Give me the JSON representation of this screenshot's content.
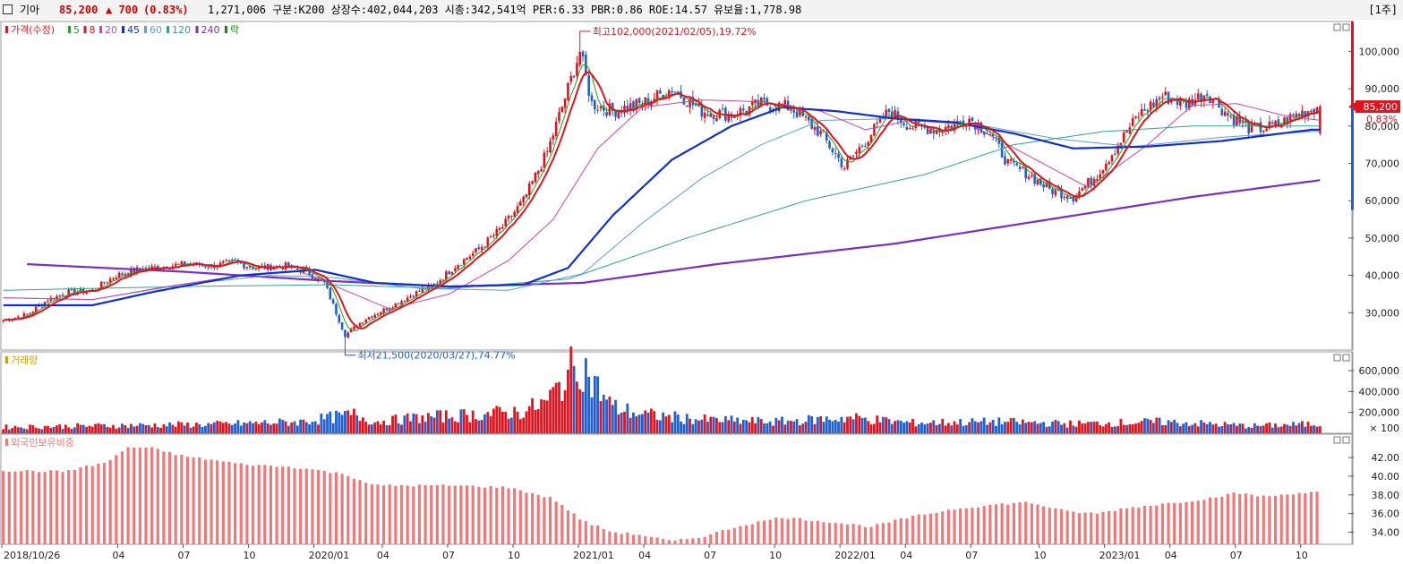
{
  "header": {
    "name": "기아",
    "price": "85,200",
    "change": "▲ 700",
    "change_pct": "(0.83%)",
    "info": "1,271,006  구분:K200 상장수:402,044,203 시총:342,541억 PER:6.33 PBR:0.86 ROE:14.57 유보율:1,778.98",
    "period": "[1주]"
  },
  "colors": {
    "up": "#e0141e",
    "down": "#1f5fd1",
    "ma5": "#22a022",
    "ma8": "#e0141e",
    "ma20": "#cc44aa",
    "ma45": "#1030c8",
    "ma60": "#5c9ed6",
    "ma120": "#2ca58d",
    "ma240": "#7a2fc0",
    "foreign": "#f07878"
  },
  "chart_data": [
    {
      "type": "line",
      "panel": "price",
      "legend": [
        {
          "label": "가격(수정)",
          "color": "#e0141e"
        },
        {
          "label": "5",
          "color": "#22a022"
        },
        {
          "label": "8",
          "color": "#e0141e"
        },
        {
          "label": "20",
          "color": "#cc44aa"
        },
        {
          "label": "45",
          "color": "#1030c8"
        },
        {
          "label": "60",
          "color": "#5c9ed6"
        },
        {
          "label": "120",
          "color": "#2ca58d"
        },
        {
          "label": "240",
          "color": "#7a2fc0"
        },
        {
          "label": "락",
          "color": "#118811"
        }
      ],
      "x_ticks": [
        "2018/10/26",
        "04",
        "07",
        "10",
        "2020/01",
        "04",
        "07",
        "10",
        "2021/01",
        "04",
        "07",
        "10",
        "2022/01",
        "04",
        "07",
        "10",
        "2023/01",
        "04",
        "07",
        "10"
      ],
      "y_ticks": [
        "30,000",
        "40,000",
        "50,000",
        "60,000",
        "70,000",
        "80,000",
        "90,000",
        "100,000"
      ],
      "ylim": [
        20000,
        108000
      ],
      "keypoints_week_close": [
        [
          0,
          28000
        ],
        [
          8,
          29500
        ],
        [
          15,
          33500
        ],
        [
          22,
          35500
        ],
        [
          30,
          36000
        ],
        [
          38,
          40000
        ],
        [
          45,
          41500
        ],
        [
          55,
          42500
        ],
        [
          62,
          43000
        ],
        [
          70,
          42500
        ],
        [
          78,
          43500
        ],
        [
          85,
          42000
        ],
        [
          95,
          42500
        ],
        [
          102,
          41000
        ],
        [
          108,
          38000
        ],
        [
          112,
          30000
        ],
        [
          115,
          24000
        ],
        [
          122,
          28500
        ],
        [
          130,
          31500
        ],
        [
          138,
          35000
        ],
        [
          145,
          37500
        ],
        [
          152,
          42500
        ],
        [
          160,
          47000
        ],
        [
          168,
          53000
        ],
        [
          175,
          60000
        ],
        [
          183,
          73000
        ],
        [
          190,
          90000
        ],
        [
          194,
          100000
        ],
        [
          198,
          86000
        ],
        [
          205,
          84000
        ],
        [
          215,
          86000
        ],
        [
          225,
          90000
        ],
        [
          235,
          84000
        ],
        [
          245,
          83000
        ],
        [
          255,
          86000
        ],
        [
          265,
          85000
        ],
        [
          275,
          78000
        ],
        [
          283,
          69000
        ],
        [
          290,
          76000
        ],
        [
          298,
          84000
        ],
        [
          305,
          80000
        ],
        [
          315,
          79000
        ],
        [
          325,
          82000
        ],
        [
          332,
          78000
        ],
        [
          338,
          70000
        ],
        [
          345,
          67000
        ],
        [
          352,
          63000
        ],
        [
          360,
          61000
        ],
        [
          368,
          67000
        ],
        [
          375,
          75000
        ],
        [
          382,
          83000
        ],
        [
          390,
          88000
        ],
        [
          398,
          86000
        ],
        [
          405,
          89000
        ],
        [
          412,
          83000
        ],
        [
          420,
          79000
        ],
        [
          428,
          80000
        ],
        [
          435,
          83000
        ],
        [
          440,
          84500
        ],
        [
          443,
          85200
        ]
      ],
      "ma45_points": [
        [
          0,
          32000
        ],
        [
          30,
          32000
        ],
        [
          50,
          35500
        ],
        [
          80,
          40000
        ],
        [
          105,
          41500
        ],
        [
          125,
          38000
        ],
        [
          150,
          37000
        ],
        [
          175,
          37500
        ],
        [
          190,
          42000
        ],
        [
          205,
          56000
        ],
        [
          225,
          71000
        ],
        [
          245,
          80000
        ],
        [
          262,
          85000
        ],
        [
          280,
          84000
        ],
        [
          300,
          82000
        ],
        [
          320,
          81000
        ],
        [
          340,
          78000
        ],
        [
          360,
          74000
        ],
        [
          385,
          74500
        ],
        [
          410,
          76000
        ],
        [
          440,
          79000
        ]
      ],
      "ma60_points": [
        [
          0,
          34000
        ],
        [
          30,
          33500
        ],
        [
          60,
          37500
        ],
        [
          90,
          40000
        ],
        [
          110,
          39500
        ],
        [
          140,
          36500
        ],
        [
          170,
          36000
        ],
        [
          195,
          40500
        ],
        [
          215,
          54000
        ],
        [
          235,
          66000
        ],
        [
          255,
          75000
        ],
        [
          275,
          81500
        ],
        [
          300,
          82000
        ],
        [
          330,
          80000
        ],
        [
          355,
          76500
        ],
        [
          380,
          74500
        ],
        [
          410,
          77000
        ],
        [
          440,
          78500
        ]
      ],
      "ma120_points": [
        [
          0,
          36000
        ],
        [
          60,
          37000
        ],
        [
          110,
          37500
        ],
        [
          150,
          36500
        ],
        [
          190,
          39000
        ],
        [
          230,
          50000
        ],
        [
          270,
          60000
        ],
        [
          310,
          67000
        ],
        [
          340,
          75000
        ],
        [
          370,
          78500
        ],
        [
          400,
          80000
        ],
        [
          440,
          80000
        ]
      ],
      "ma240_points": [
        [
          8,
          43000
        ],
        [
          60,
          41000
        ],
        [
          110,
          38500
        ],
        [
          150,
          37000
        ],
        [
          195,
          38000
        ],
        [
          240,
          43000
        ],
        [
          300,
          48500
        ],
        [
          360,
          56000
        ],
        [
          400,
          61000
        ],
        [
          443,
          65500
        ]
      ],
      "ma20_points": [
        [
          0,
          34000
        ],
        [
          30,
          33500
        ],
        [
          55,
          37000
        ],
        [
          80,
          40000
        ],
        [
          100,
          41000
        ],
        [
          115,
          36000
        ],
        [
          130,
          31000
        ],
        [
          150,
          35000
        ],
        [
          170,
          44000
        ],
        [
          185,
          55000
        ],
        [
          200,
          74000
        ],
        [
          215,
          85000
        ],
        [
          235,
          87000
        ],
        [
          255,
          86500
        ],
        [
          275,
          84000
        ],
        [
          290,
          79000
        ],
        [
          305,
          81500
        ],
        [
          325,
          80500
        ],
        [
          345,
          72000
        ],
        [
          365,
          63500
        ],
        [
          385,
          75000
        ],
        [
          400,
          85500
        ],
        [
          415,
          86000
        ],
        [
          430,
          83000
        ],
        [
          443,
          81500
        ]
      ],
      "annotations": [
        "최고102,000(2021/02/05),19.72%",
        "최저21,500(2020/03/27),74.77%"
      ],
      "last_price_label": "85,200",
      "last_pct_label": "0.83%"
    },
    {
      "type": "bar",
      "panel": "volume",
      "legend": "거래량",
      "y_ticks": [
        "200,000",
        "400,000",
        "600,000"
      ],
      "unit": "× 100",
      "ylim": [
        0,
        780000
      ],
      "keypoints": [
        [
          0,
          60000
        ],
        [
          40,
          75000
        ],
        [
          70,
          85000
        ],
        [
          100,
          110000
        ],
        [
          110,
          150000
        ],
        [
          118,
          180000
        ],
        [
          125,
          110000
        ],
        [
          140,
          150000
        ],
        [
          160,
          180000
        ],
        [
          175,
          210000
        ],
        [
          183,
          300000
        ],
        [
          190,
          560000
        ],
        [
          194,
          700000
        ],
        [
          198,
          500000
        ],
        [
          205,
          250000
        ],
        [
          215,
          180000
        ],
        [
          235,
          130000
        ],
        [
          260,
          110000
        ],
        [
          285,
          150000
        ],
        [
          305,
          100000
        ],
        [
          335,
          110000
        ],
        [
          360,
          90000
        ],
        [
          390,
          110000
        ],
        [
          420,
          70000
        ],
        [
          443,
          90000
        ]
      ]
    },
    {
      "type": "bar",
      "panel": "foreign",
      "legend": "외국인보유비중",
      "y_ticks": [
        "34.00",
        "36.00",
        "38.00",
        "40.00",
        "42.00"
      ],
      "ylim": [
        32.7,
        44.5
      ],
      "keypoints": [
        [
          0,
          40.6
        ],
        [
          20,
          40.5
        ],
        [
          35,
          41.5
        ],
        [
          42,
          43.1
        ],
        [
          50,
          43.0
        ],
        [
          60,
          42.2
        ],
        [
          80,
          41.3
        ],
        [
          100,
          40.9
        ],
        [
          115,
          40.2
        ],
        [
          125,
          39.0
        ],
        [
          150,
          39.0
        ],
        [
          170,
          38.8
        ],
        [
          185,
          37.6
        ],
        [
          195,
          35.2
        ],
        [
          205,
          34.0
        ],
        [
          215,
          33.7
        ],
        [
          225,
          33.0
        ],
        [
          235,
          33.5
        ],
        [
          248,
          34.7
        ],
        [
          262,
          35.6
        ],
        [
          278,
          35.1
        ],
        [
          292,
          34.6
        ],
        [
          305,
          35.6
        ],
        [
          320,
          36.5
        ],
        [
          335,
          37.0
        ],
        [
          345,
          37.2
        ],
        [
          358,
          36.2
        ],
        [
          368,
          36.0
        ],
        [
          378,
          36.6
        ],
        [
          395,
          37.2
        ],
        [
          405,
          37.6
        ],
        [
          415,
          38.2
        ],
        [
          425,
          37.8
        ],
        [
          435,
          38.2
        ],
        [
          443,
          38.3
        ]
      ]
    }
  ]
}
